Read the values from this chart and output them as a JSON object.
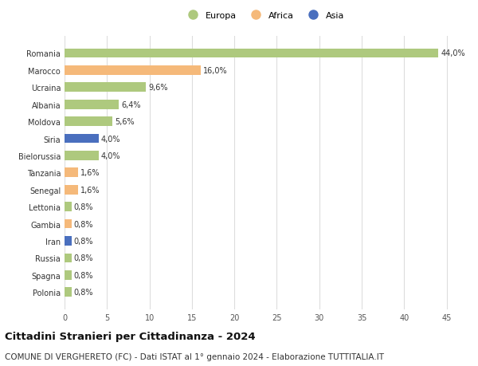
{
  "countries": [
    "Romania",
    "Marocco",
    "Ucraina",
    "Albania",
    "Moldova",
    "Siria",
    "Bielorussia",
    "Tanzania",
    "Senegal",
    "Lettonia",
    "Gambia",
    "Iran",
    "Russia",
    "Spagna",
    "Polonia"
  ],
  "values": [
    44.0,
    16.0,
    9.6,
    6.4,
    5.6,
    4.0,
    4.0,
    1.6,
    1.6,
    0.8,
    0.8,
    0.8,
    0.8,
    0.8,
    0.8
  ],
  "labels": [
    "44,0%",
    "16,0%",
    "9,6%",
    "6,4%",
    "5,6%",
    "4,0%",
    "4,0%",
    "1,6%",
    "1,6%",
    "0,8%",
    "0,8%",
    "0,8%",
    "0,8%",
    "0,8%",
    "0,8%"
  ],
  "continents": [
    "Europa",
    "Africa",
    "Europa",
    "Europa",
    "Europa",
    "Asia",
    "Europa",
    "Africa",
    "Africa",
    "Europa",
    "Africa",
    "Asia",
    "Europa",
    "Europa",
    "Europa"
  ],
  "colors": {
    "Europa": "#aec97e",
    "Africa": "#f5b97a",
    "Asia": "#4a6fbe"
  },
  "xlim": [
    0,
    47
  ],
  "xticks": [
    0,
    5,
    10,
    15,
    20,
    25,
    30,
    35,
    40,
    45
  ],
  "title": "Cittadini Stranieri per Cittadinanza - 2024",
  "subtitle": "COMUNE DI VERGHERETO (FC) - Dati ISTAT al 1° gennaio 2024 - Elaborazione TUTTITALIA.IT",
  "background_color": "#ffffff",
  "grid_color": "#dddddd",
  "bar_height": 0.55,
  "title_fontsize": 9.5,
  "subtitle_fontsize": 7.5,
  "label_fontsize": 7,
  "tick_fontsize": 7,
  "legend_fontsize": 8
}
